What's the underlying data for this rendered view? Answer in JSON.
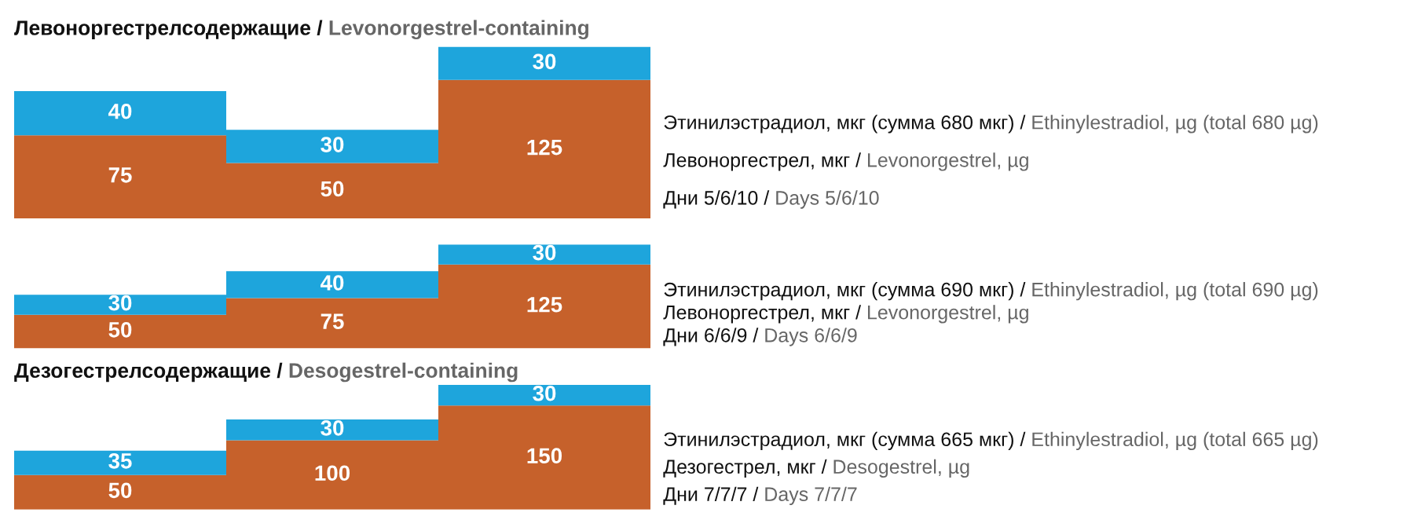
{
  "chart_data": [
    {
      "type": "bar",
      "stacked": true,
      "title": "Левоноргестрелсодержащие / Levonorgestrel-containing",
      "categories": [
        null,
        null,
        null
      ],
      "data_labels": true,
      "tick_labels": false,
      "series": [
        {
          "name": "Левоноргестрел, мкг / Levonorgestrel, µg",
          "color": "#c6612b",
          "values": [
            75,
            50,
            125
          ]
        },
        {
          "name": "Этинилэстрадиол, мкг (сумма 680 мкг) / Ethinylestradiol, µg (total 680 µg)",
          "color": "#1ea5dc",
          "values": [
            40,
            30,
            30
          ]
        }
      ],
      "annotations": [
        "Дни 5/6/10 / Days 5/6/10"
      ]
    },
    {
      "type": "bar",
      "stacked": true,
      "categories": [
        null,
        null,
        null
      ],
      "data_labels": true,
      "tick_labels": false,
      "series": [
        {
          "name": "Левоноргестрел, мкг / Levonorgestrel, µg",
          "color": "#c6612b",
          "values": [
            50,
            75,
            125
          ]
        },
        {
          "name": "Этинилэстрадиол, мкг (сумма 690 мкг) / Ethinylestradiol, µg (total 690 µg)",
          "color": "#1ea5dc",
          "values": [
            30,
            40,
            30
          ]
        }
      ],
      "annotations": [
        "Дни 6/6/9 / Days 6/6/9"
      ]
    },
    {
      "type": "bar",
      "stacked": true,
      "title": "Дезогестрелсодержащие / Desogestrel-containing",
      "categories": [
        null,
        null,
        null
      ],
      "data_labels": true,
      "tick_labels": false,
      "series": [
        {
          "name": "Дезогестрел, мкг / Desogestrel, µg",
          "color": "#c6612b",
          "values": [
            50,
            100,
            150
          ]
        },
        {
          "name": "Этинилэстрадиол, мкг (сумма 665 мкг) / Ethinylestradiol, µg (total 665 µg)",
          "color": "#1ea5dc",
          "values": [
            35,
            30,
            30
          ]
        }
      ],
      "annotations": [
        "Дни 7/7/7 / Days 7/7/7"
      ]
    }
  ]
}
